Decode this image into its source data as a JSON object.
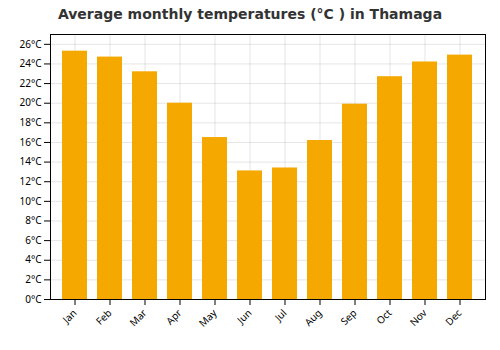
{
  "chart_data": {
    "type": "bar",
    "title": "Average monthly temperatures (°C ) in Thamaga",
    "categories": [
      "Jan",
      "Feb",
      "Mar",
      "Apr",
      "May",
      "Jun",
      "Jul",
      "Aug",
      "Sep",
      "Oct",
      "Nov",
      "Dec"
    ],
    "values": [
      25.3,
      24.7,
      23.2,
      20.0,
      16.5,
      13.1,
      13.4,
      16.2,
      19.9,
      22.7,
      24.2,
      24.9
    ],
    "color": "#F5A800",
    "ylim": [
      0,
      27
    ],
    "yticks": [
      {
        "value": 0,
        "label": "0°C"
      },
      {
        "value": 2,
        "label": "2°C"
      },
      {
        "value": 4,
        "label": "4°C"
      },
      {
        "value": 6,
        "label": "6°C"
      },
      {
        "value": 8,
        "label": "8°C"
      },
      {
        "value": 10,
        "label": "10°C"
      },
      {
        "value": 12,
        "label": "12°C"
      },
      {
        "value": 14,
        "label": "14°C"
      },
      {
        "value": 16,
        "label": "16°C"
      },
      {
        "value": 18,
        "label": "18°C"
      },
      {
        "value": 20,
        "label": "20°C"
      },
      {
        "value": 22,
        "label": "22°C"
      },
      {
        "value": 24,
        "label": "24°C"
      },
      {
        "value": 26,
        "label": "26°C"
      }
    ],
    "grid": true
  }
}
